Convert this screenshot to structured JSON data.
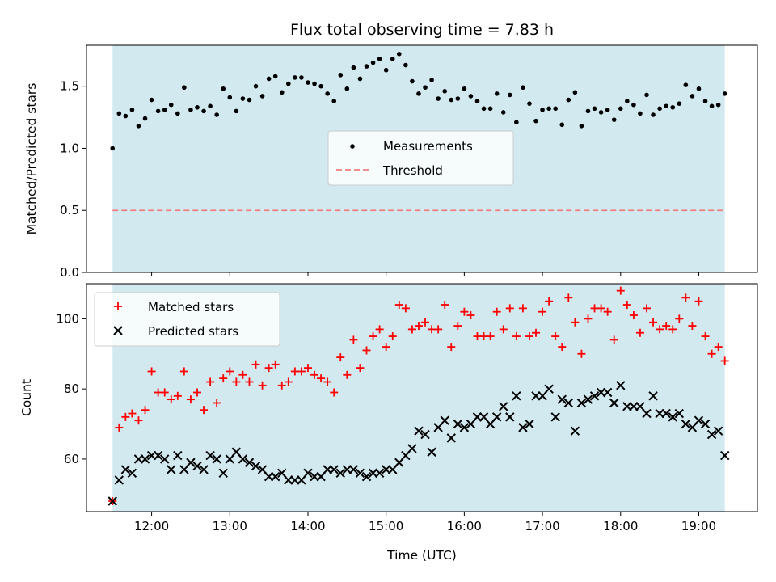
{
  "chart_data": [
    {
      "type": "scatter",
      "title": "Flux total observing time = 7.83 h",
      "xlabel": "",
      "ylabel": "Matched/Predicted stars",
      "xlim": [
        "11:10",
        "19:45"
      ],
      "ylim": [
        0,
        1.83
      ],
      "yticks": [
        0.0,
        0.5,
        1.0,
        1.5
      ],
      "ytick_labels": [
        "0.0",
        "0.5",
        "1.0",
        "1.5"
      ],
      "shaded_span": [
        "11:30",
        "19:20"
      ],
      "shade_color": "#d3e9f0",
      "threshold": 0.5,
      "threshold_color": "#f08080",
      "legend_position": "center",
      "legend": [
        "Measurements",
        "Threshold"
      ],
      "series": [
        {
          "name": "Measurements",
          "color": "#000000",
          "marker": "dot",
          "x": [
            "11:30",
            "11:35",
            "11:40",
            "11:45",
            "11:50",
            "11:55",
            "12:00",
            "12:05",
            "12:10",
            "12:15",
            "12:20",
            "12:25",
            "12:30",
            "12:35",
            "12:40",
            "12:45",
            "12:50",
            "12:55",
            "13:00",
            "13:05",
            "13:10",
            "13:15",
            "13:20",
            "13:25",
            "13:30",
            "13:35",
            "13:40",
            "13:45",
            "13:50",
            "13:55",
            "14:00",
            "14:05",
            "14:10",
            "14:15",
            "14:20",
            "14:25",
            "14:30",
            "14:35",
            "14:40",
            "14:45",
            "14:50",
            "14:55",
            "15:00",
            "15:05",
            "15:10",
            "15:15",
            "15:20",
            "15:25",
            "15:30",
            "15:35",
            "15:40",
            "15:45",
            "15:50",
            "15:55",
            "16:00",
            "16:05",
            "16:10",
            "16:15",
            "16:20",
            "16:25",
            "16:30",
            "16:35",
            "16:40",
            "16:45",
            "16:50",
            "16:55",
            "17:00",
            "17:05",
            "17:10",
            "17:15",
            "17:20",
            "17:25",
            "17:30",
            "17:35",
            "17:40",
            "17:45",
            "17:50",
            "17:55",
            "18:00",
            "18:05",
            "18:10",
            "18:15",
            "18:20",
            "18:25",
            "18:30",
            "18:35",
            "18:40",
            "18:45",
            "18:50",
            "18:55",
            "19:00",
            "19:05",
            "19:10",
            "19:15",
            "19:20"
          ],
          "y": [
            1.0,
            1.28,
            1.26,
            1.31,
            1.18,
            1.24,
            1.39,
            1.3,
            1.31,
            1.35,
            1.28,
            1.49,
            1.31,
            1.33,
            1.3,
            1.34,
            1.27,
            1.48,
            1.41,
            1.3,
            1.4,
            1.39,
            1.5,
            1.42,
            1.56,
            1.58,
            1.45,
            1.52,
            1.57,
            1.57,
            1.53,
            1.52,
            1.5,
            1.44,
            1.38,
            1.59,
            1.48,
            1.65,
            1.56,
            1.66,
            1.69,
            1.72,
            1.63,
            1.72,
            1.76,
            1.67,
            1.54,
            1.44,
            1.49,
            1.55,
            1.4,
            1.46,
            1.39,
            1.4,
            1.48,
            1.42,
            1.38,
            1.32,
            1.32,
            1.44,
            1.29,
            1.43,
            1.21,
            1.49,
            1.36,
            1.22,
            1.31,
            1.32,
            1.32,
            1.19,
            1.39,
            1.45,
            1.18,
            1.3,
            1.32,
            1.29,
            1.31,
            1.23,
            1.32,
            1.38,
            1.35,
            1.28,
            1.43,
            1.27,
            1.32,
            1.34,
            1.33,
            1.36,
            1.51,
            1.42,
            1.48,
            1.38,
            1.34,
            1.35,
            1.44
          ]
        }
      ]
    },
    {
      "type": "scatter",
      "title": "",
      "xlabel": "Time (UTC)",
      "ylabel": "Count",
      "xlim": [
        "11:10",
        "19:45"
      ],
      "ylim": [
        45,
        110
      ],
      "yticks": [
        60,
        80,
        100
      ],
      "ytick_labels": [
        "60",
        "80",
        "100"
      ],
      "xticks": [
        "12:00",
        "13:00",
        "14:00",
        "15:00",
        "16:00",
        "17:00",
        "18:00",
        "19:00"
      ],
      "shaded_span": [
        "11:30",
        "19:20"
      ],
      "shade_color": "#d3e9f0",
      "legend_position": "top-left",
      "legend": [
        "Matched stars",
        "Predicted stars"
      ],
      "x": [
        "11:30",
        "11:35",
        "11:40",
        "11:45",
        "11:50",
        "11:55",
        "12:00",
        "12:05",
        "12:10",
        "12:15",
        "12:20",
        "12:25",
        "12:30",
        "12:35",
        "12:40",
        "12:45",
        "12:50",
        "12:55",
        "13:00",
        "13:05",
        "13:10",
        "13:15",
        "13:20",
        "13:25",
        "13:30",
        "13:35",
        "13:40",
        "13:45",
        "13:50",
        "13:55",
        "14:00",
        "14:05",
        "14:10",
        "14:15",
        "14:20",
        "14:25",
        "14:30",
        "14:35",
        "14:40",
        "14:45",
        "14:50",
        "14:55",
        "15:00",
        "15:05",
        "15:10",
        "15:15",
        "15:20",
        "15:25",
        "15:30",
        "15:35",
        "15:40",
        "15:45",
        "15:50",
        "15:55",
        "16:00",
        "16:05",
        "16:10",
        "16:15",
        "16:20",
        "16:25",
        "16:30",
        "16:35",
        "16:40",
        "16:45",
        "16:50",
        "16:55",
        "17:00",
        "17:05",
        "17:10",
        "17:15",
        "17:20",
        "17:25",
        "17:30",
        "17:35",
        "17:40",
        "17:45",
        "17:50",
        "17:55",
        "18:00",
        "18:05",
        "18:10",
        "18:15",
        "18:20",
        "18:25",
        "18:30",
        "18:35",
        "18:40",
        "18:45",
        "18:50",
        "18:55",
        "19:00",
        "19:05",
        "19:10",
        "19:15",
        "19:20"
      ],
      "series": [
        {
          "name": "Matched stars",
          "color": "#ff0000",
          "marker": "plus",
          "y": [
            48,
            69,
            72,
            73,
            71,
            74,
            85,
            79,
            79,
            77,
            78,
            85,
            77,
            79,
            74,
            82,
            76,
            83,
            85,
            82,
            84,
            82,
            87,
            81,
            86,
            87,
            81,
            82,
            85,
            85,
            86,
            84,
            83,
            82,
            79,
            89,
            84,
            94,
            86,
            91,
            95,
            97,
            92,
            95,
            104,
            103,
            97,
            98,
            99,
            97,
            97,
            104,
            92,
            98,
            102,
            101,
            95,
            95,
            95,
            102,
            97,
            103,
            95,
            103,
            95,
            96,
            102,
            105,
            95,
            92,
            106,
            99,
            90,
            100,
            103,
            103,
            102,
            94,
            108,
            104,
            101,
            96,
            103,
            99,
            97,
            98,
            97,
            100,
            106,
            98,
            105,
            95,
            90,
            92,
            88
          ]
        },
        {
          "name": "Predicted stars",
          "color": "#000000",
          "marker": "x",
          "y": [
            48,
            54,
            57,
            56,
            60,
            60,
            61,
            61,
            60,
            57,
            61,
            57,
            59,
            58,
            57,
            61,
            60,
            56,
            60,
            62,
            60,
            59,
            58,
            57,
            55,
            55,
            56,
            54,
            54,
            54,
            56,
            55,
            55,
            57,
            57,
            56,
            57,
            57,
            56,
            55,
            56,
            56,
            57,
            57,
            59,
            61,
            63,
            68,
            67,
            62,
            69,
            71,
            66,
            70,
            69,
            70,
            72,
            72,
            70,
            72,
            75,
            72,
            78,
            69,
            70,
            78,
            78,
            80,
            72,
            77,
            76,
            68,
            76,
            77,
            78,
            79,
            79,
            76,
            81,
            75,
            75,
            75,
            73,
            78,
            73,
            73,
            72,
            73,
            70,
            69,
            71,
            70,
            67,
            68,
            61
          ]
        }
      ]
    }
  ]
}
